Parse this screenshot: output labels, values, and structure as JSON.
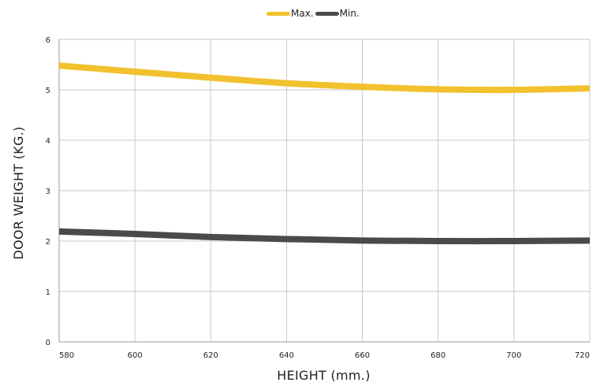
{
  "chart_data": {
    "type": "line",
    "xlabel": "HEIGHT (mm.)",
    "ylabel": "DOOR WEIGHT (KG.)",
    "x": [
      580,
      600,
      620,
      640,
      660,
      680,
      700,
      720
    ],
    "xlim": [
      580,
      720
    ],
    "ylim": [
      0,
      6
    ],
    "xticks": [
      "580",
      "600",
      "620",
      "640",
      "660",
      "680",
      "700",
      "720"
    ],
    "yticks": [
      "0",
      "1",
      "2",
      "3",
      "4",
      "5",
      "6"
    ],
    "grid": true,
    "legend_position": "top-center",
    "series": [
      {
        "name": "Max.",
        "color": "#F2C12E",
        "values": [
          5.48,
          5.36,
          5.24,
          5.13,
          5.06,
          5.01,
          5.0,
          5.03
        ]
      },
      {
        "name": "Min.",
        "color": "#4A4A4A",
        "values": [
          2.19,
          2.14,
          2.08,
          2.04,
          2.01,
          2.0,
          2.0,
          2.01
        ]
      }
    ]
  }
}
